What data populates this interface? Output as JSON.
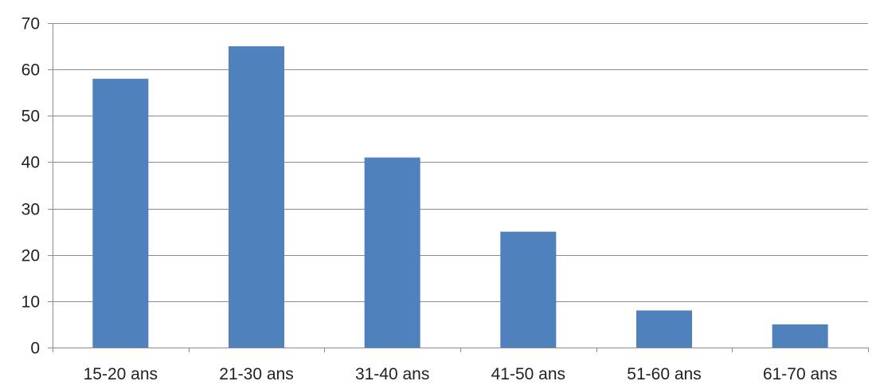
{
  "chart_data": {
    "type": "bar",
    "title": "",
    "xlabel": "",
    "ylabel": "",
    "categories": [
      "15-20 ans",
      "21-30 ans",
      "31-40 ans",
      "41-50 ans",
      "51-60 ans",
      "61-70 ans"
    ],
    "series": [
      {
        "values": [
          58,
          65,
          41,
          25,
          8,
          5
        ]
      }
    ],
    "ylim": [
      0,
      70
    ],
    "yticks": [
      0,
      10,
      20,
      30,
      40,
      50,
      60,
      70
    ],
    "grid": true,
    "legend": "none",
    "colors": {
      "bar": "#4f81bd",
      "grid": "#8c8c8c",
      "axis": "#8c8c8c"
    }
  }
}
